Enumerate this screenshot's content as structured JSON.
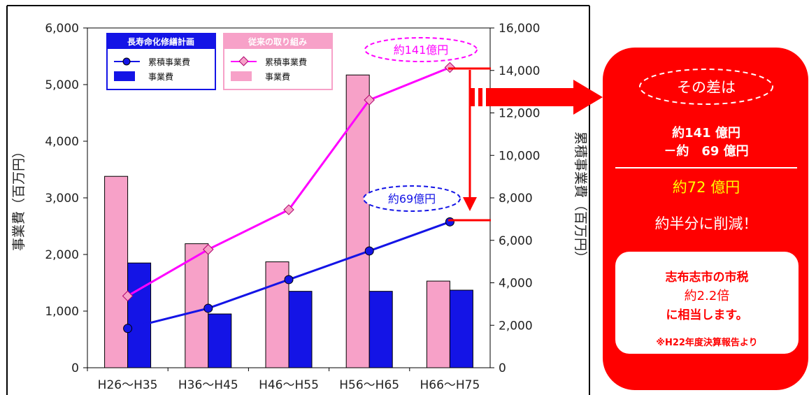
{
  "chart_data": {
    "type": "bar",
    "categories": [
      "H26～H35",
      "H36～H45",
      "H46～H55",
      "H56～H65",
      "H66～H75"
    ],
    "ylabel": "事業費（百万円）",
    "y2label": "累積事業費（百万円）",
    "ylim": [
      0,
      6000
    ],
    "y2lim": [
      0,
      16000
    ],
    "y_ticks": [
      "0",
      "1,000",
      "2,000",
      "3,000",
      "4,000",
      "5,000",
      "6,000"
    ],
    "y2_ticks": [
      "0",
      "2,000",
      "4,000",
      "6,000",
      "8,000",
      "10,000",
      "12,000",
      "14,000",
      "16,000"
    ],
    "grid": false,
    "series": [
      {
        "name": "事業費",
        "group": "従来の取り組み",
        "kind": "bar",
        "axis": "left",
        "color": "#f7a1c8",
        "values": [
          3380,
          2190,
          1870,
          5170,
          1530
        ]
      },
      {
        "name": "事業費",
        "group": "長寿命化修繕計画",
        "kind": "bar",
        "axis": "left",
        "color": "#1414e6",
        "values": [
          1850,
          950,
          1350,
          1350,
          1370
        ]
      },
      {
        "name": "累積事業費",
        "group": "従来の取り組み",
        "kind": "line",
        "axis": "right",
        "color": "#ff00ff",
        "values": [
          3380,
          5570,
          7440,
          12610,
          14140
        ]
      },
      {
        "name": "累積事業費",
        "group": "長寿命化修繕計画",
        "kind": "line",
        "axis": "right",
        "color": "#1414e6",
        "values": [
          1850,
          2800,
          4150,
          5500,
          6870
        ]
      }
    ],
    "legend": {
      "groups": [
        {
          "title": "長寿命化修繕計画",
          "color": "#1414e6",
          "line_label": "累積事業費",
          "bar_label": "事業費"
        },
        {
          "title": "従来の取り組み",
          "color": "#f7a1c8",
          "line_label": "累積事業費",
          "bar_label": "事業費"
        }
      ],
      "placement": "top-left"
    },
    "annotations": [
      {
        "text": "約141億円",
        "color": "#ff00ff"
      },
      {
        "text": "約69億円",
        "color": "#1414e6"
      }
    ]
  },
  "panel": {
    "header": "その差は",
    "line1": "約141 億円",
    "line2": "－約　69 億円",
    "result": "約72 億円",
    "reduction": "約半分に削減！",
    "inner_line1": "志布志市の市税",
    "inner_line2": "約2.2倍",
    "inner_line3": "に相当します。",
    "inner_note": "※H22年度決算報告より",
    "colors": {
      "panel": "#ff0000",
      "result": "#ffff00",
      "inner_text": "#ff0000"
    }
  }
}
